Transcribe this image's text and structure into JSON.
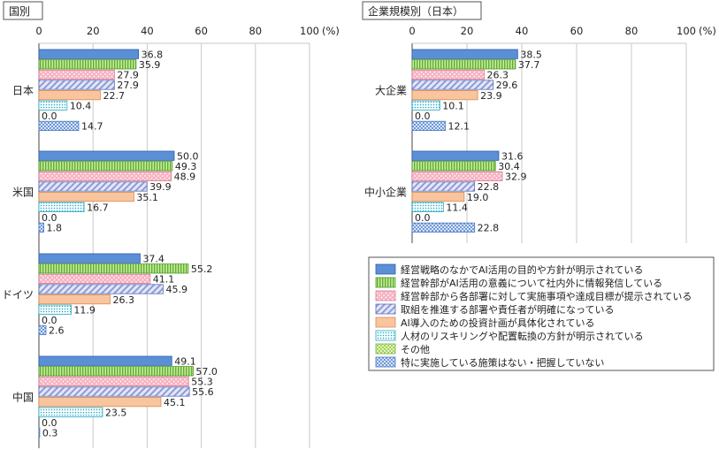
{
  "unit_label": "(%)",
  "chart_data": [
    {
      "type": "bar",
      "orientation": "horizontal",
      "title": "国別",
      "xlim": [
        0,
        100
      ],
      "xticks": [
        0,
        20,
        40,
        60,
        80,
        100
      ],
      "grid": true,
      "categories": [
        "日本",
        "米国",
        "ドイツ",
        "中国"
      ],
      "series": [
        {
          "name": "経営戦略のなかでAI活用の目的や方針が明示されている",
          "values": [
            36.8,
            50.0,
            37.4,
            49.1
          ]
        },
        {
          "name": "経営幹部がAI活用の意義について社内外に情報発信している",
          "values": [
            35.9,
            49.3,
            55.2,
            57.0
          ]
        },
        {
          "name": "経営幹部から各部署に対して実施事項や達成目標が提示されている",
          "values": [
            27.9,
            48.9,
            41.1,
            55.3
          ]
        },
        {
          "name": "取組を推進する部署や責任者が明確になっている",
          "values": [
            27.9,
            39.9,
            45.9,
            55.6
          ]
        },
        {
          "name": "AI導入のための投資計画が具体化されている",
          "values": [
            22.7,
            35.1,
            26.3,
            45.1
          ]
        },
        {
          "name": "人材のリスキリングや配置転換の方針が明示されている",
          "values": [
            10.4,
            16.7,
            11.9,
            23.5
          ]
        },
        {
          "name": "その他",
          "values": [
            0.0,
            0.0,
            0.0,
            0.0
          ]
        },
        {
          "name": "特に実施している施策はない・把握していない",
          "values": [
            14.7,
            1.8,
            2.6,
            0.3
          ]
        }
      ]
    },
    {
      "type": "bar",
      "orientation": "horizontal",
      "title": "企業規模別（日本）",
      "xlim": [
        0,
        100
      ],
      "xticks": [
        0,
        20,
        40,
        60,
        80,
        100
      ],
      "grid": true,
      "categories": [
        "大企業",
        "中小企業"
      ],
      "series": [
        {
          "name": "経営戦略のなかでAI活用の目的や方針が明示されている",
          "values": [
            38.5,
            31.6
          ]
        },
        {
          "name": "経営幹部がAI活用の意義について社内外に情報発信している",
          "values": [
            37.7,
            30.4
          ]
        },
        {
          "name": "経営幹部から各部署に対して実施事項や達成目標が提示されている",
          "values": [
            26.3,
            32.9
          ]
        },
        {
          "name": "取組を推進する部署や責任者が明確になっている",
          "values": [
            29.6,
            22.8
          ]
        },
        {
          "name": "AI導入のための投資計画が具体化されている",
          "values": [
            23.9,
            19.0
          ]
        },
        {
          "name": "人材のリスキリングや配置転換の方針が明示されている",
          "values": [
            10.1,
            11.4
          ]
        },
        {
          "name": "その他",
          "values": [
            0.0,
            0.0
          ]
        },
        {
          "name": "特に実施している施策はない・把握していない",
          "values": [
            12.1,
            22.8
          ]
        }
      ]
    }
  ],
  "legend": {
    "placement": "bottom-right",
    "items": [
      {
        "label": "経営戦略のなかでAI活用の目的や方針が明示されている",
        "pattern": "solid-blue"
      },
      {
        "label": "経営幹部がAI活用の意義について社内外に情報発信している",
        "pattern": "vertical-stripes-green"
      },
      {
        "label": "経営幹部から各部署に対して実施事項や達成目標が提示されている",
        "pattern": "dots-pink"
      },
      {
        "label": "取組を推進する部署や責任者が明確になっている",
        "pattern": "diagonal-lavender"
      },
      {
        "label": "AI導入のための投資計画が具体化されている",
        "pattern": "solid-peach"
      },
      {
        "label": "人材のリスキリングや配置転換の方針が明示されている",
        "pattern": "dots-cyan"
      },
      {
        "label": "その他",
        "pattern": "check-lightgreen"
      },
      {
        "label": "特に実施している施策はない・把握していない",
        "pattern": "check-lightblue"
      }
    ]
  },
  "colors": {
    "series_fill": [
      "#5b8fd6",
      "#a6d86b",
      "#f7b3c3",
      "#b9c3ea",
      "#f8c59e",
      "#ffffff",
      "#d3ee9c",
      "#bcd4f1"
    ],
    "series_stroke": [
      "#2d5faa",
      "#4f9a2a",
      "#d77a92",
      "#5f6fb8",
      "#d98a55",
      "#22a8c4",
      "#7fb03c",
      "#4a78c0"
    ],
    "grid": "#c9c9c9"
  }
}
